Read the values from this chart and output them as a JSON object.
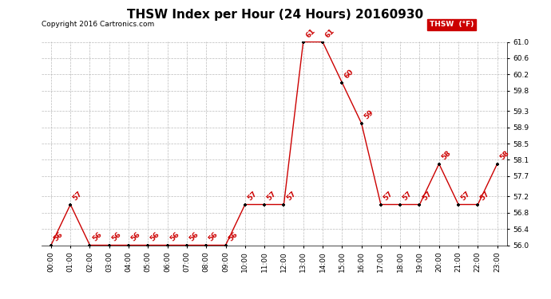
{
  "title": "THSW Index per Hour (24 Hours) 20160930",
  "copyright": "Copyright 2016 Cartronics.com",
  "legend_label": "THSW  (°F)",
  "hours": [
    "00:00",
    "01:00",
    "02:00",
    "03:00",
    "04:00",
    "05:00",
    "06:00",
    "07:00",
    "08:00",
    "09:00",
    "10:00",
    "11:00",
    "12:00",
    "13:00",
    "14:00",
    "15:00",
    "16:00",
    "17:00",
    "18:00",
    "19:00",
    "20:00",
    "21:00",
    "22:00",
    "23:00"
  ],
  "values": [
    56,
    57,
    56,
    56,
    56,
    56,
    56,
    56,
    56,
    56,
    57,
    57,
    57,
    61,
    61,
    60,
    59,
    57,
    57,
    57,
    58,
    57,
    57,
    58
  ],
  "line_color": "#cc0000",
  "marker_color": "#000000",
  "label_color": "#cc0000",
  "background_color": "#ffffff",
  "grid_color": "#aaaaaa",
  "ylim_min": 56.0,
  "ylim_max": 61.0,
  "yticks": [
    56.0,
    56.4,
    56.8,
    57.2,
    57.7,
    58.1,
    58.5,
    58.9,
    59.3,
    59.8,
    60.2,
    60.6,
    61.0
  ],
  "title_fontsize": 11,
  "copyright_fontsize": 6.5,
  "label_fontsize": 6.5,
  "tick_fontsize": 6.5,
  "legend_bg": "#cc0000",
  "legend_text_color": "#ffffff"
}
